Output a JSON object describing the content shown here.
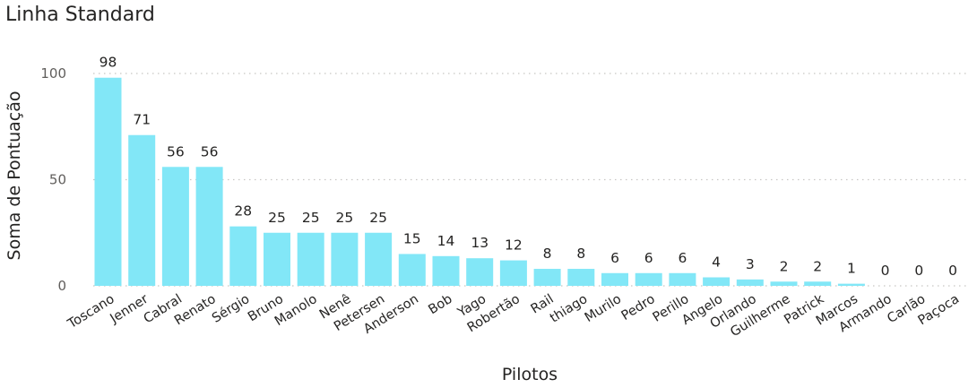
{
  "chart_data": {
    "type": "bar",
    "title": "Linha Standard",
    "xlabel": "Pilotos",
    "ylabel": "Soma de Pontuação",
    "categories": [
      "Toscano",
      "Jenner",
      "Cabral",
      "Renato",
      "Sérgio",
      "Bruno",
      "Manolo",
      "Nenê",
      "Petersen",
      "Anderson",
      "Bob",
      "Yago",
      "Robertão",
      "Rail",
      "thiago",
      "Murilo",
      "Pedro",
      "Perillo",
      "Angelo",
      "Orlando",
      "Guilherme",
      "Patrick",
      "Marcos",
      "Armando",
      "Carlão",
      "Paçoca"
    ],
    "values": [
      98,
      71,
      56,
      56,
      28,
      25,
      25,
      25,
      25,
      15,
      14,
      13,
      12,
      8,
      8,
      6,
      6,
      6,
      4,
      3,
      2,
      2,
      1,
      0,
      0,
      0
    ],
    "yticks": [
      0,
      50,
      100
    ],
    "ylim": [
      0,
      105
    ],
    "grid": true,
    "bar_color": "#82e7f7"
  }
}
